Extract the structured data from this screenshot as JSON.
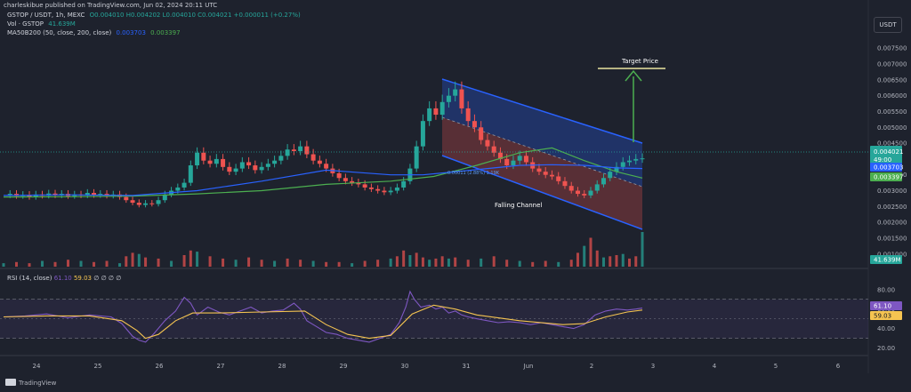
{
  "header": {
    "published": "charleskibue published on TradingView.com, Jun 02, 2024 20:11 UTC",
    "symbol_line": "GSTOP / USDT, 1h, MEXC",
    "ohlc": "O0.004010 H0.004202 L0.004010 C0.004021 +0.000011 (+0.27%)",
    "volume_label": "Vol · GSTOP",
    "volume_value": "41.639M",
    "ma_label": "MA50B200 (50, close, 200, close)",
    "ma_value_1": "0.003703",
    "ma_value_2": "0.003397",
    "quote_currency": "USDT"
  },
  "footer": {
    "brand": "TradingView"
  },
  "rsi_header": {
    "label": "RSI (14, close)",
    "value": "61.10",
    "ma_value": "59.03",
    "extra": "∅ ∅ ∅ ∅"
  },
  "colors": {
    "background": "#1e222d",
    "up": "#26a69a",
    "down": "#ef5350",
    "ma50": "#2962ff",
    "ma200": "#4caf50",
    "rsi": "#7e57c2",
    "rsi_ma": "#f5c451",
    "channel_upper": "#2962ff",
    "channel_lower": "#ef5350",
    "target_arrow": "#4caf50"
  },
  "chart_data": {
    "type": "candlestick",
    "title": "GSTOP / USDT, 1h, MEXC",
    "x_ticks": [
      "24",
      "25",
      "26",
      "27",
      "28",
      "29",
      "30",
      "31",
      "Jun",
      "2",
      "3",
      "4",
      "5",
      "6"
    ],
    "price_ticks": [
      "0.007500",
      "0.007000",
      "0.006500",
      "0.006000",
      "0.005500",
      "0.005000",
      "0.004500",
      "0.003500",
      "0.003000",
      "0.002500",
      "0.002000",
      "0.001500",
      "0.001000"
    ],
    "price_ylim": [
      0.0006,
      0.0079
    ],
    "rsi_ticks": [
      "80.00",
      "60.00",
      "40.00",
      "20.00"
    ],
    "rsi_ylim": [
      15,
      88
    ],
    "price_labels": {
      "last": "0.004021",
      "countdown": "49:00",
      "ma50": "0.003703",
      "ma200": "0.003397",
      "volume": "41.639M",
      "rsi": "61.10",
      "rsi_ma": "59.03"
    },
    "annotations": {
      "target": "Target Price",
      "channel": "Falling Channel",
      "measure": "0.00011 (2.88%) 1.19K"
    },
    "price_series": [
      [
        0,
        0.00285
      ],
      [
        3,
        0.0029
      ],
      [
        6,
        0.00283
      ],
      [
        9,
        0.00287
      ],
      [
        12,
        0.0028
      ],
      [
        15,
        0.00288
      ],
      [
        18,
        0.00284
      ],
      [
        21,
        0.00291
      ],
      [
        24,
        0.00285
      ],
      [
        27,
        0.0029
      ],
      [
        30,
        0.00283
      ],
      [
        33,
        0.00288
      ],
      [
        36,
        0.00285
      ],
      [
        39,
        0.00293
      ],
      [
        42,
        0.00286
      ],
      [
        45,
        0.0029
      ],
      [
        48,
        0.00284
      ],
      [
        51,
        0.00288
      ],
      [
        54,
        0.0028
      ],
      [
        57,
        0.0027
      ],
      [
        60,
        0.00262
      ],
      [
        63,
        0.00255
      ],
      [
        66,
        0.0026
      ],
      [
        69,
        0.00258
      ],
      [
        72,
        0.0027
      ],
      [
        75,
        0.00288
      ],
      [
        78,
        0.003
      ],
      [
        81,
        0.0031
      ],
      [
        84,
        0.00325
      ],
      [
        87,
        0.0038
      ],
      [
        90,
        0.0042
      ],
      [
        93,
        0.00395
      ],
      [
        96,
        0.00385
      ],
      [
        99,
        0.004
      ],
      [
        102,
        0.00375
      ],
      [
        105,
        0.0036
      ],
      [
        108,
        0.0037
      ],
      [
        111,
        0.0039
      ],
      [
        114,
        0.0038
      ],
      [
        117,
        0.00365
      ],
      [
        120,
        0.00375
      ],
      [
        123,
        0.00385
      ],
      [
        126,
        0.00395
      ],
      [
        129,
        0.0041
      ],
      [
        132,
        0.0043
      ],
      [
        135,
        0.00425
      ],
      [
        138,
        0.0044
      ],
      [
        141,
        0.00415
      ],
      [
        144,
        0.00395
      ],
      [
        147,
        0.00385
      ],
      [
        150,
        0.0037
      ],
      [
        153,
        0.00355
      ],
      [
        156,
        0.0034
      ],
      [
        159,
        0.0033
      ],
      [
        162,
        0.00325
      ],
      [
        165,
        0.0032
      ],
      [
        168,
        0.0031
      ],
      [
        171,
        0.00305
      ],
      [
        174,
        0.003
      ],
      [
        177,
        0.00295
      ],
      [
        180,
        0.003
      ],
      [
        183,
        0.0031
      ],
      [
        186,
        0.0033
      ],
      [
        189,
        0.0037
      ],
      [
        192,
        0.0044
      ],
      [
        195,
        0.0052
      ],
      [
        198,
        0.0056
      ],
      [
        201,
        0.0054
      ],
      [
        204,
        0.0058
      ],
      [
        207,
        0.006
      ],
      [
        210,
        0.0062
      ],
      [
        213,
        0.0056
      ],
      [
        216,
        0.0052
      ],
      [
        219,
        0.005
      ],
      [
        222,
        0.0046
      ],
      [
        225,
        0.0044
      ],
      [
        228,
        0.0042
      ],
      [
        231,
        0.004
      ],
      [
        234,
        0.0038
      ],
      [
        237,
        0.00395
      ],
      [
        240,
        0.0041
      ],
      [
        243,
        0.0039
      ],
      [
        246,
        0.0037
      ],
      [
        249,
        0.0036
      ],
      [
        252,
        0.0035
      ],
      [
        255,
        0.00345
      ],
      [
        258,
        0.0033
      ],
      [
        261,
        0.00315
      ],
      [
        264,
        0.003
      ],
      [
        267,
        0.0029
      ],
      [
        270,
        0.00285
      ],
      [
        273,
        0.003
      ],
      [
        276,
        0.0032
      ],
      [
        279,
        0.0034
      ],
      [
        282,
        0.0036
      ],
      [
        285,
        0.00375
      ],
      [
        288,
        0.0039
      ],
      [
        291,
        0.00395
      ],
      [
        294,
        0.004
      ],
      [
        297,
        0.00402
      ]
    ],
    "ma50_series": [
      [
        0,
        0.00285
      ],
      [
        30,
        0.00287
      ],
      [
        60,
        0.00285
      ],
      [
        90,
        0.003
      ],
      [
        120,
        0.0033
      ],
      [
        150,
        0.00365
      ],
      [
        180,
        0.0035
      ],
      [
        195,
        0.0035
      ],
      [
        210,
        0.0036
      ],
      [
        225,
        0.0037
      ],
      [
        240,
        0.0038
      ],
      [
        255,
        0.00382
      ],
      [
        270,
        0.0038
      ],
      [
        285,
        0.00372
      ],
      [
        297,
        0.0037
      ]
    ],
    "ma200_series": [
      [
        0,
        0.0028
      ],
      [
        30,
        0.00281
      ],
      [
        60,
        0.00283
      ],
      [
        90,
        0.0029
      ],
      [
        120,
        0.003
      ],
      [
        150,
        0.0032
      ],
      [
        180,
        0.0033
      ],
      [
        200,
        0.00345
      ],
      [
        220,
        0.0038
      ],
      [
        240,
        0.0042
      ],
      [
        255,
        0.00435
      ],
      [
        270,
        0.00395
      ],
      [
        285,
        0.0036
      ],
      [
        297,
        0.0034
      ]
    ],
    "volume_series": [
      [
        0,
        3
      ],
      [
        6,
        4
      ],
      [
        12,
        3
      ],
      [
        18,
        5
      ],
      [
        24,
        4
      ],
      [
        30,
        6
      ],
      [
        36,
        5
      ],
      [
        42,
        4
      ],
      [
        48,
        5
      ],
      [
        54,
        3
      ],
      [
        57,
        9
      ],
      [
        60,
        12
      ],
      [
        63,
        11
      ],
      [
        66,
        8
      ],
      [
        72,
        7
      ],
      [
        78,
        5
      ],
      [
        84,
        10
      ],
      [
        87,
        14
      ],
      [
        90,
        13
      ],
      [
        96,
        9
      ],
      [
        102,
        7
      ],
      [
        108,
        6
      ],
      [
        114,
        8
      ],
      [
        120,
        6
      ],
      [
        126,
        5
      ],
      [
        132,
        7
      ],
      [
        138,
        6
      ],
      [
        144,
        5
      ],
      [
        150,
        4
      ],
      [
        156,
        4
      ],
      [
        162,
        3
      ],
      [
        168,
        5
      ],
      [
        174,
        6
      ],
      [
        180,
        7
      ],
      [
        183,
        9
      ],
      [
        186,
        14
      ],
      [
        189,
        10
      ],
      [
        192,
        12
      ],
      [
        195,
        8
      ],
      [
        198,
        6
      ],
      [
        201,
        7
      ],
      [
        204,
        9
      ],
      [
        207,
        7
      ],
      [
        210,
        8
      ],
      [
        216,
        6
      ],
      [
        222,
        7
      ],
      [
        228,
        9
      ],
      [
        234,
        6
      ],
      [
        240,
        5
      ],
      [
        246,
        4
      ],
      [
        252,
        5
      ],
      [
        258,
        4
      ],
      [
        264,
        6
      ],
      [
        267,
        12
      ],
      [
        270,
        18
      ],
      [
        273,
        25
      ],
      [
        276,
        14
      ],
      [
        279,
        8
      ],
      [
        282,
        9
      ],
      [
        285,
        10
      ],
      [
        288,
        11
      ],
      [
        291,
        7
      ],
      [
        294,
        9
      ],
      [
        297,
        30
      ]
    ],
    "rsi_series": [
      [
        0,
        52
      ],
      [
        10,
        53
      ],
      [
        20,
        55
      ],
      [
        30,
        51
      ],
      [
        40,
        54
      ],
      [
        50,
        52
      ],
      [
        55,
        45
      ],
      [
        60,
        32
      ],
      [
        63,
        28
      ],
      [
        66,
        26
      ],
      [
        70,
        35
      ],
      [
        75,
        48
      ],
      [
        80,
        58
      ],
      [
        84,
        72
      ],
      [
        87,
        66
      ],
      [
        90,
        54
      ],
      [
        95,
        62
      ],
      [
        100,
        57
      ],
      [
        105,
        54
      ],
      [
        110,
        58
      ],
      [
        115,
        62
      ],
      [
        120,
        56
      ],
      [
        125,
        58
      ],
      [
        130,
        59
      ],
      [
        135,
        66
      ],
      [
        138,
        60
      ],
      [
        141,
        48
      ],
      [
        144,
        44
      ],
      [
        150,
        36
      ],
      [
        155,
        34
      ],
      [
        160,
        30
      ],
      [
        165,
        28
      ],
      [
        170,
        26
      ],
      [
        175,
        30
      ],
      [
        180,
        34
      ],
      [
        184,
        46
      ],
      [
        187,
        62
      ],
      [
        189,
        78
      ],
      [
        191,
        70
      ],
      [
        194,
        62
      ],
      [
        198,
        64
      ],
      [
        201,
        60
      ],
      [
        204,
        62
      ],
      [
        207,
        56
      ],
      [
        210,
        58
      ],
      [
        213,
        54
      ],
      [
        216,
        52
      ],
      [
        220,
        50
      ],
      [
        225,
        48
      ],
      [
        230,
        46
      ],
      [
        235,
        47
      ],
      [
        240,
        46
      ],
      [
        245,
        44
      ],
      [
        250,
        46
      ],
      [
        255,
        44
      ],
      [
        260,
        42
      ],
      [
        265,
        40
      ],
      [
        270,
        44
      ],
      [
        275,
        54
      ],
      [
        280,
        58
      ],
      [
        285,
        60
      ],
      [
        290,
        59
      ],
      [
        294,
        60
      ],
      [
        297,
        61
      ]
    ],
    "rsi_ma_series": [
      [
        0,
        52
      ],
      [
        20,
        53
      ],
      [
        40,
        53
      ],
      [
        55,
        48
      ],
      [
        62,
        38
      ],
      [
        66,
        30
      ],
      [
        72,
        34
      ],
      [
        80,
        48
      ],
      [
        88,
        56
      ],
      [
        100,
        56
      ],
      [
        120,
        57
      ],
      [
        140,
        58
      ],
      [
        150,
        44
      ],
      [
        160,
        34
      ],
      [
        170,
        30
      ],
      [
        180,
        33
      ],
      [
        190,
        55
      ],
      [
        200,
        64
      ],
      [
        210,
        60
      ],
      [
        220,
        54
      ],
      [
        240,
        48
      ],
      [
        260,
        44
      ],
      [
        270,
        45
      ],
      [
        280,
        52
      ],
      [
        290,
        57
      ],
      [
        297,
        59
      ]
    ]
  }
}
